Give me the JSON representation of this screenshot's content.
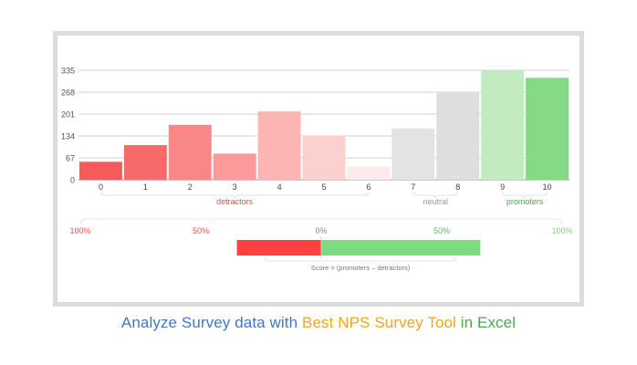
{
  "chart_data": {
    "type": "bar",
    "categories": [
      "0",
      "1",
      "2",
      "3",
      "4",
      "5",
      "6",
      "7",
      "8",
      "9",
      "10"
    ],
    "values": [
      55,
      106,
      168,
      80,
      209,
      136,
      40,
      157,
      270,
      335,
      312
    ],
    "ylim": [
      0,
      335
    ],
    "yticks": [
      0,
      67,
      134,
      201,
      268,
      335
    ],
    "ytick_labels": [
      "0",
      "67",
      "134",
      "201",
      "268",
      "335"
    ],
    "grid": true,
    "bar_colors": [
      "#f75a5a",
      "#f86a6a",
      "#f98787",
      "#fa9a9a",
      "#fcb4b4",
      "#fdd0d0",
      "#fde9e9",
      "#e3e3e3",
      "#dedede",
      "#c3ebc2",
      "#86d985"
    ],
    "groups": [
      {
        "name": "detractors",
        "from": 0,
        "to": 6,
        "color": "#e84c4c"
      },
      {
        "name": "neutral",
        "from": 7,
        "to": 8,
        "color": "#9a9a9a"
      },
      {
        "name": "promoters",
        "from": 9,
        "to": 10,
        "color": "#4aa84a"
      }
    ],
    "score_axis": {
      "labels": [
        {
          "text": "100%",
          "value": -100,
          "color": "#ec4a4a"
        },
        {
          "text": "50%",
          "value": -50,
          "color": "#e85050"
        },
        {
          "text": "0%",
          "value": 0,
          "color": "#888888"
        },
        {
          "text": "50%",
          "value": 50,
          "color": "#5cb85c"
        },
        {
          "text": "100%",
          "value": 100,
          "color": "#7fd07f"
        }
      ],
      "negative_part": -35,
      "positive_part": 66,
      "negative_color": "#ff4040",
      "positive_color": "#7fdb7f",
      "formula": "Score = (promoters  –  detractors)"
    }
  },
  "caption": {
    "part1": "Analyze Survey data with ",
    "part2": "Best NPS Survey Tool",
    "part3": " in Excel"
  }
}
